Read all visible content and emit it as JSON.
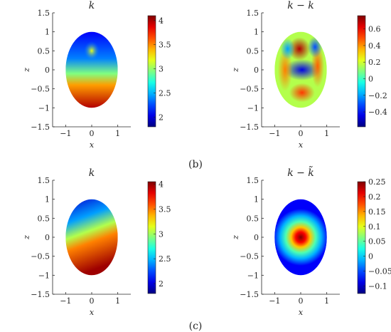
{
  "panel_labels": [
    "(b)",
    "(c)"
  ],
  "chart_data": [
    {
      "type": "heatmap",
      "panel": "b",
      "title": "k",
      "xlabel": "x",
      "ylabel": "z",
      "xlim": [
        -1.5,
        1.5
      ],
      "ylim": [
        -1.5,
        1.5
      ],
      "xticks": [
        -1,
        0,
        1
      ],
      "yticks": [
        -1.5,
        -1,
        -0.5,
        0,
        0.5,
        1,
        1.5
      ],
      "colorbar": {
        "min": 1.8,
        "max": 4.1,
        "ticks": [
          2,
          2.5,
          3,
          3.5,
          4
        ]
      },
      "domain": "unit disk",
      "colormap": "jet"
    },
    {
      "type": "heatmap",
      "panel": "b",
      "title": "k − k̃",
      "xlabel": "x",
      "ylabel": "z",
      "xlim": [
        -1.5,
        1.5
      ],
      "ylim": [
        -1.5,
        1.5
      ],
      "xticks": [
        -1,
        0,
        1
      ],
      "yticks": [
        -1.5,
        -1,
        -0.5,
        0,
        0.5,
        1,
        1.5
      ],
      "colorbar": {
        "min": -0.58,
        "max": 0.76,
        "ticks": [
          -0.4,
          -0.2,
          0,
          0.2,
          0.4,
          0.6
        ]
      },
      "domain": "unit disk",
      "colormap": "jet"
    },
    {
      "type": "heatmap",
      "panel": "c",
      "title": "k",
      "xlabel": "x",
      "ylabel": "z",
      "xlim": [
        -1.5,
        1.5
      ],
      "ylim": [
        -1.5,
        1.5
      ],
      "xticks": [
        -1,
        0,
        1
      ],
      "yticks": [
        -1.5,
        -1,
        -0.5,
        0,
        0.5,
        1,
        1.5
      ],
      "colorbar": {
        "min": 1.8,
        "max": 4.05,
        "ticks": [
          2,
          2.5,
          3,
          3.5,
          4
        ]
      },
      "domain": "unit disk",
      "colormap": "jet"
    },
    {
      "type": "heatmap",
      "panel": "c",
      "title": "k − k̃",
      "xlabel": "x",
      "ylabel": "z",
      "xlim": [
        -1.5,
        1.5
      ],
      "ylim": [
        -1.5,
        1.5
      ],
      "xticks": [
        -1,
        0,
        1
      ],
      "yticks": [
        -1.5,
        -1,
        -0.5,
        0,
        0.5,
        1,
        1.5
      ],
      "colorbar": {
        "min": -0.125,
        "max": 0.25,
        "ticks": [
          -0.1,
          -0.05,
          0,
          0.05,
          0.1,
          0.15,
          0.2,
          0.25
        ]
      },
      "domain": "unit disk",
      "colormap": "jet"
    }
  ]
}
